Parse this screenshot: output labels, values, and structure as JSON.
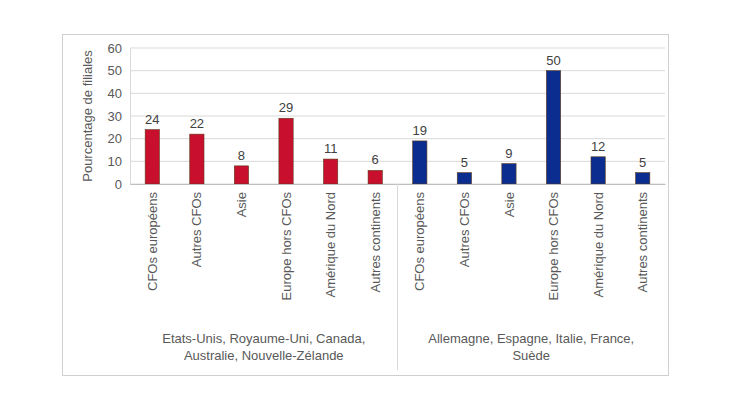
{
  "chart_data": {
    "type": "bar",
    "ylabel": "Pourcentage de filiales",
    "ylim": [
      0,
      60
    ],
    "yticks": [
      0,
      10,
      20,
      30,
      40,
      50,
      60
    ],
    "grid": true,
    "data_labels": true,
    "groups": [
      {
        "label_lines": [
          "Etats-Unis, Royaume-Uni, Canada,",
          "Australie, Nouvelle-Zélande"
        ],
        "color": "#c8102e",
        "categories": [
          "CFOs européens",
          "Autres CFOs",
          "Asie",
          "Europe hors CFOs",
          "Amérique du Nord",
          "Autres continents"
        ],
        "values": [
          24,
          22,
          8,
          29,
          11,
          6
        ]
      },
      {
        "label_lines": [
          "Allemagne, Espagne, Italie, France,",
          "Suède"
        ],
        "color": "#0a2d8f",
        "categories": [
          "CFOs européens",
          "Autres CFOs",
          "Asie",
          "Europe hors CFOs",
          "Amérique du Nord",
          "Autres continents"
        ],
        "values": [
          19,
          5,
          9,
          50,
          12,
          5
        ]
      }
    ]
  }
}
